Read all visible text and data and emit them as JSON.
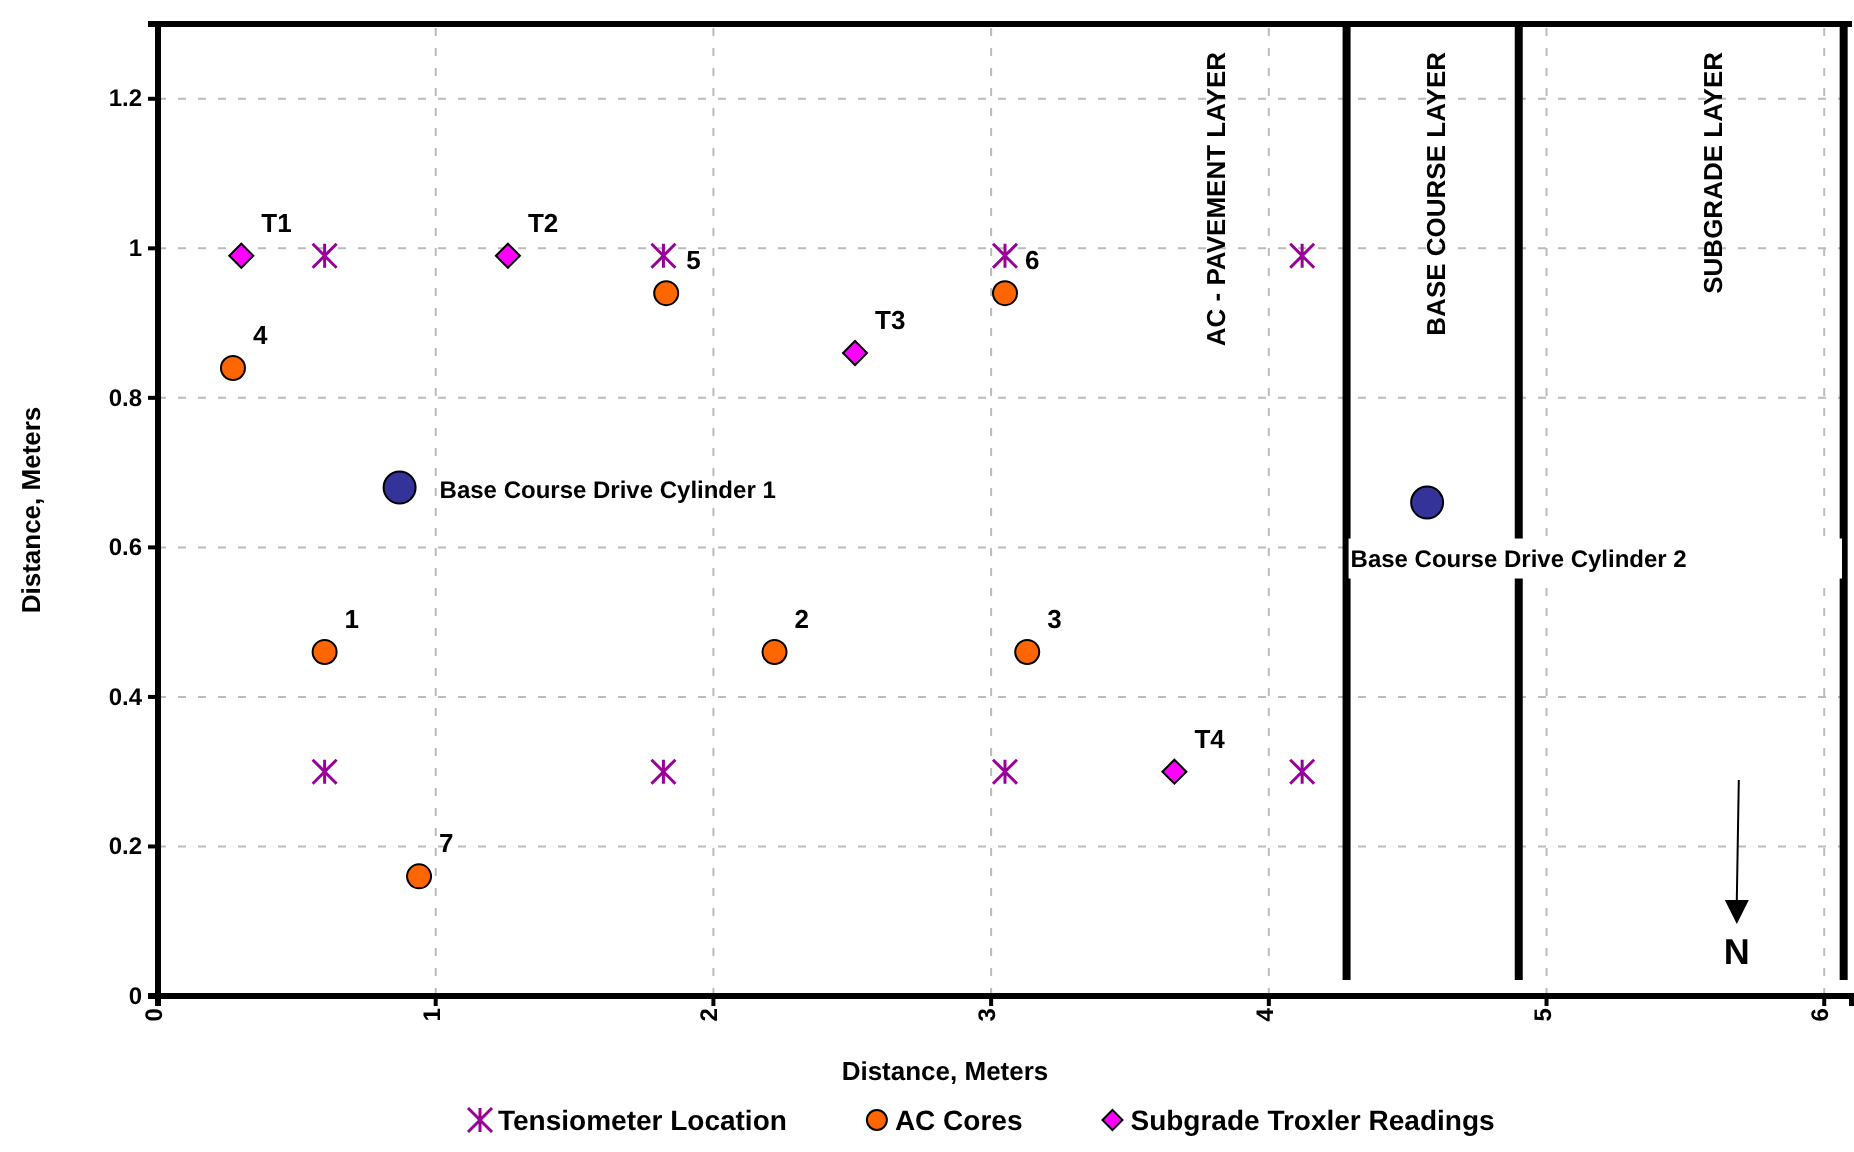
{
  "chart_data": {
    "type": "scatter",
    "xlabel": "Distance, Meters",
    "ylabel": "Distance, Meters",
    "xlim": [
      0,
      6.1
    ],
    "ylim": [
      0,
      1.3
    ],
    "xticks": [
      0,
      1,
      2,
      3,
      4,
      5,
      6
    ],
    "yticks": [
      0,
      0.2,
      0.4,
      0.6,
      0.8,
      1,
      1.2
    ],
    "grid": true,
    "legend": "bottom",
    "series": [
      {
        "name": "Tensiometer Location",
        "color": "#990099",
        "marker": "cross",
        "x": [
          0.6,
          1.82,
          3.05,
          4.12,
          0.6,
          1.82,
          3.05,
          4.12
        ],
        "values": [
          0.99,
          0.99,
          0.99,
          0.99,
          0.3,
          0.3,
          0.3,
          0.3
        ]
      },
      {
        "name": "AC Cores",
        "color": "#ff6600",
        "marker": "circle",
        "x": [
          0.6,
          2.22,
          3.13,
          0.27,
          1.83,
          3.05,
          0.94
        ],
        "values": [
          0.46,
          0.46,
          0.46,
          0.84,
          0.94,
          0.94,
          0.16
        ]
      },
      {
        "name": "Subgrade Troxler Readings",
        "color": "#ff00ff",
        "marker": "diamond",
        "x": [
          0.3,
          1.26,
          2.51,
          3.66
        ],
        "values": [
          0.99,
          0.99,
          0.86,
          0.3
        ]
      },
      {
        "color": "#333399",
        "marker": "circle",
        "x": [
          0.87,
          4.57
        ],
        "values": [
          0.68,
          0.66
        ]
      }
    ],
    "ref_lines": [
      {
        "axis": "x",
        "value": 4.28
      },
      {
        "axis": "x",
        "value": 4.9
      },
      {
        "axis": "x",
        "value": 6.07
      }
    ],
    "annotations": [
      {
        "text": "1",
        "x": 0.6,
        "y": 0.46
      },
      {
        "text": "2",
        "x": 2.22,
        "y": 0.46
      },
      {
        "text": "3",
        "x": 3.13,
        "y": 0.46
      },
      {
        "text": "4",
        "x": 0.27,
        "y": 0.84
      },
      {
        "text": "5",
        "x": 1.83,
        "y": 0.94
      },
      {
        "text": "6",
        "x": 3.05,
        "y": 0.94
      },
      {
        "text": "7",
        "x": 0.94,
        "y": 0.16
      },
      {
        "text": "T1",
        "x": 0.3,
        "y": 0.99
      },
      {
        "text": "T2",
        "x": 1.26,
        "y": 0.99
      },
      {
        "text": "T3",
        "x": 2.51,
        "y": 0.86
      },
      {
        "text": "T4",
        "x": 3.66,
        "y": 0.3
      },
      {
        "text": "Base Course Drive Cylinder 1",
        "x": 0.87,
        "y": 0.68
      },
      {
        "text": "Base Course Drive Cylinder 2",
        "x": 4.57,
        "y": 0.66
      },
      "AC - PAVEMENT LAYER",
      "BASE COURSE LAYER",
      "SUBGRADE LAYER",
      "N"
    ]
  }
}
